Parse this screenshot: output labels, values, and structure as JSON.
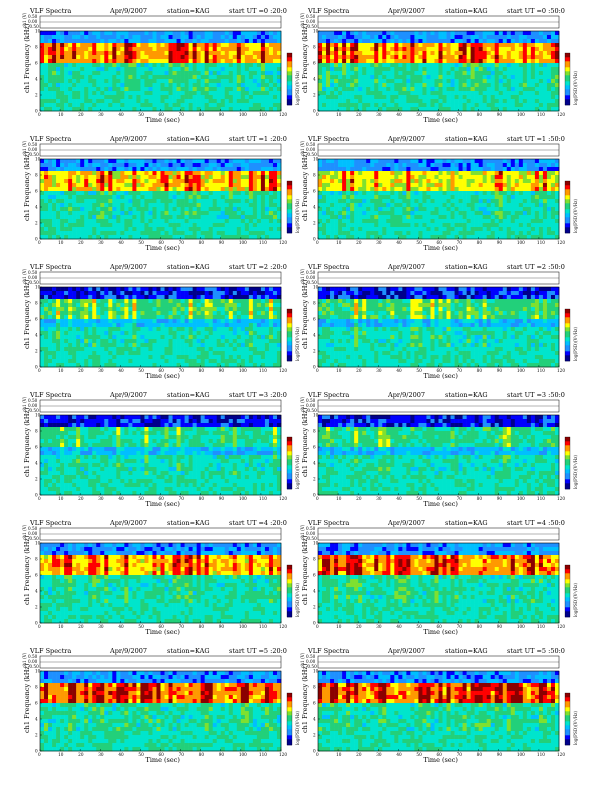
{
  "colors": {
    "colormap": [
      "#00008b",
      "#0000ff",
      "#1e90ff",
      "#00bfff",
      "#00e5cc",
      "#22d07a",
      "#7fe030",
      "#ffff00",
      "#ff9900",
      "#ff0000",
      "#8b0000"
    ]
  },
  "chart_data": [
    {
      "type": "heatmap",
      "title": "VLF Spectra",
      "date": "Apr/9/2007",
      "station": "station=KAG",
      "start": "start  UT =0 :20:0",
      "ylabel_top": "ch1 (V)",
      "yticks_top": [
        "0.50",
        "0.00",
        "-0.50"
      ],
      "ylabel": "ch1 Frequency (kHz)",
      "yticks": [
        "0",
        "2",
        "4",
        "6",
        "8",
        "10"
      ],
      "xlabel": "Time (sec)",
      "xticks": [
        "0",
        "10",
        "20",
        "30",
        "40",
        "50",
        "60",
        "70",
        "80",
        "90",
        "100",
        "110",
        "120"
      ],
      "xlim": [
        0,
        120
      ],
      "ylim": [
        0,
        10
      ],
      "colorbar_label": "log(PSD)(V²/Hz)",
      "activity": 0.7
    },
    {
      "type": "heatmap",
      "title": "VLF Spectra",
      "date": "Apr/9/2007",
      "station": "station=KAG",
      "start": "start  UT =0 :50:0",
      "ylabel_top": "ch1 (V)",
      "yticks_top": [
        "0.50",
        "0.00",
        "-0.50"
      ],
      "ylabel": "ch1 Frequency (kHz)",
      "yticks": [
        "0",
        "2",
        "4",
        "6",
        "8",
        "10"
      ],
      "xlabel": "Time (sec)",
      "xticks": [
        "0",
        "10",
        "20",
        "30",
        "40",
        "50",
        "60",
        "70",
        "80",
        "90",
        "100",
        "110",
        "120"
      ],
      "xlim": [
        0,
        120
      ],
      "ylim": [
        0,
        10
      ],
      "colorbar_label": "log(PSD)(V²/Hz)",
      "activity": 0.65
    },
    {
      "type": "heatmap",
      "title": "VLF Spectra",
      "date": "Apr/9/2007",
      "station": "station=KAG",
      "start": "start  UT =1 :20:0",
      "ylabel_top": "ch1 (V)",
      "yticks_top": [
        "0.50",
        "0.00",
        "-0.50"
      ],
      "ylabel": "ch1 Frequency (kHz)",
      "yticks": [
        "0",
        "2",
        "4",
        "6",
        "8",
        "10"
      ],
      "xlabel": "Time (sec)",
      "xticks": [
        "0",
        "10",
        "20",
        "30",
        "40",
        "50",
        "60",
        "70",
        "80",
        "90",
        "100",
        "110",
        "120"
      ],
      "xlim": [
        0,
        120
      ],
      "ylim": [
        0,
        10
      ],
      "colorbar_label": "log(PSD)(V²/Hz)",
      "activity": 0.55
    },
    {
      "type": "heatmap",
      "title": "VLF Spectra",
      "date": "Apr/9/2007",
      "station": "station=KAG",
      "start": "start  UT =1 :50:0",
      "ylabel_top": "ch1 (V)",
      "yticks_top": [
        "0.50",
        "0.00",
        "-0.50"
      ],
      "ylabel": "ch1 Frequency (kHz)",
      "yticks": [
        "0",
        "2",
        "4",
        "6",
        "8",
        "10"
      ],
      "xlabel": "Time (sec)",
      "xticks": [
        "0",
        "10",
        "20",
        "30",
        "40",
        "50",
        "60",
        "70",
        "80",
        "90",
        "100",
        "110",
        "120"
      ],
      "xlim": [
        0,
        120
      ],
      "ylim": [
        0,
        10
      ],
      "colorbar_label": "log(PSD)(V²/Hz)",
      "activity": 0.5
    },
    {
      "type": "heatmap",
      "title": "VLF Spectra",
      "date": "Apr/9/2007",
      "station": "station=KAG",
      "start": "start  UT =2 :20:0",
      "ylabel_top": "ch1 (V)",
      "yticks_top": [
        "0.50",
        "0.00",
        "-0.50"
      ],
      "ylabel": "ch1 Frequency (kHz)",
      "yticks": [
        "0",
        "2",
        "4",
        "6",
        "8",
        "10"
      ],
      "xlabel": "Time (sec)",
      "xticks": [
        "0",
        "10",
        "20",
        "30",
        "40",
        "50",
        "60",
        "70",
        "80",
        "90",
        "100",
        "110",
        "120"
      ],
      "xlim": [
        0,
        120
      ],
      "ylim": [
        0,
        10
      ],
      "colorbar_label": "log(PSD)(V²/Hz)",
      "activity": 0.35
    },
    {
      "type": "heatmap",
      "title": "VLF Spectra",
      "date": "Apr/9/2007",
      "station": "station=KAG",
      "start": "start  UT =2 :50:0",
      "ylabel_top": "ch1 (V)",
      "yticks_top": [
        "0.50",
        "0.00",
        "-0.50"
      ],
      "ylabel": "ch1 Frequency (kHz)",
      "yticks": [
        "0",
        "2",
        "4",
        "6",
        "8",
        "10"
      ],
      "xlabel": "Time (sec)",
      "xticks": [
        "0",
        "10",
        "20",
        "30",
        "40",
        "50",
        "60",
        "70",
        "80",
        "90",
        "100",
        "110",
        "120"
      ],
      "xlim": [
        0,
        120
      ],
      "ylim": [
        0,
        10
      ],
      "colorbar_label": "log(PSD)(V²/Hz)",
      "activity": 0.35
    },
    {
      "type": "heatmap",
      "title": "VLF Spectra",
      "date": "Apr/9/2007",
      "station": "station=KAG",
      "start": "start  UT =3 :20:0",
      "ylabel_top": "ch1 (V)",
      "yticks_top": [
        "0.50",
        "0.00",
        "-0.50"
      ],
      "ylabel": "ch1 Frequency (kHz)",
      "yticks": [
        "0",
        "2",
        "4",
        "6",
        "8",
        "10"
      ],
      "xlabel": "Time (sec)",
      "xticks": [
        "0",
        "10",
        "20",
        "30",
        "40",
        "50",
        "60",
        "70",
        "80",
        "90",
        "100",
        "110",
        "120"
      ],
      "xlim": [
        0,
        120
      ],
      "ylim": [
        0,
        10
      ],
      "colorbar_label": "log(PSD)(V²/Hz)",
      "activity": 0.25
    },
    {
      "type": "heatmap",
      "title": "VLF Spectra",
      "date": "Apr/9/2007",
      "station": "station=KAG",
      "start": "start  UT =3 :50:0",
      "ylabel_top": "ch1 (V)",
      "yticks_top": [
        "0.50",
        "0.00",
        "-0.50"
      ],
      "ylabel": "ch1 Frequency (kHz)",
      "yticks": [
        "0",
        "2",
        "4",
        "6",
        "8",
        "10"
      ],
      "xlabel": "Time (sec)",
      "xticks": [
        "0",
        "10",
        "20",
        "30",
        "40",
        "50",
        "60",
        "70",
        "80",
        "90",
        "100",
        "110",
        "120"
      ],
      "xlim": [
        0,
        120
      ],
      "ylim": [
        0,
        10
      ],
      "colorbar_label": "log(PSD)(V²/Hz)",
      "activity": 0.3
    },
    {
      "type": "heatmap",
      "title": "VLF Spectra",
      "date": "Apr/9/2007",
      "station": "station=KAG",
      "start": "start  UT =4 :20:0",
      "ylabel_top": "ch1 (V)",
      "yticks_top": [
        "0.50",
        "0.00",
        "-0.50"
      ],
      "ylabel": "ch1 Frequency (kHz)",
      "yticks": [
        "0",
        "2",
        "4",
        "6",
        "8",
        "10"
      ],
      "xlabel": "Time (sec)",
      "xticks": [
        "0",
        "10",
        "20",
        "30",
        "40",
        "50",
        "60",
        "70",
        "80",
        "90",
        "100",
        "110",
        "120"
      ],
      "xlim": [
        0,
        120
      ],
      "ylim": [
        0,
        10
      ],
      "colorbar_label": "log(PSD)(V²/Hz)",
      "activity": 0.6
    },
    {
      "type": "heatmap",
      "title": "VLF Spectra",
      "date": "Apr/9/2007",
      "station": "station=KAG",
      "start": "start  UT =4 :50:0",
      "ylabel_top": "ch1 (V)",
      "yticks_top": [
        "0.50",
        "0.00",
        "-0.50"
      ],
      "ylabel": "ch1 Frequency (kHz)",
      "yticks": [
        "0",
        "2",
        "4",
        "6",
        "8",
        "10"
      ],
      "xlabel": "Time (sec)",
      "xticks": [
        "0",
        "10",
        "20",
        "30",
        "40",
        "50",
        "60",
        "70",
        "80",
        "90",
        "100",
        "110",
        "120"
      ],
      "xlim": [
        0,
        120
      ],
      "ylim": [
        0,
        10
      ],
      "colorbar_label": "log(PSD)(V²/Hz)",
      "activity": 0.75
    },
    {
      "type": "heatmap",
      "title": "VLF Spectra",
      "date": "Apr/9/2007",
      "station": "station=KAG",
      "start": "start  UT =5 :20:0",
      "ylabel_top": "ch1 (V)",
      "yticks_top": [
        "0.50",
        "0.00",
        "-0.50"
      ],
      "ylabel": "ch1 Frequency (kHz)",
      "yticks": [
        "0",
        "2",
        "4",
        "6",
        "8",
        "10"
      ],
      "xlabel": "Time (sec)",
      "xticks": [
        "0",
        "10",
        "20",
        "30",
        "40",
        "50",
        "60",
        "70",
        "80",
        "90",
        "100",
        "110",
        "120"
      ],
      "xlim": [
        0,
        120
      ],
      "ylim": [
        0,
        10
      ],
      "colorbar_label": "log(PSD)(V²/Hz)",
      "activity": 0.8
    },
    {
      "type": "heatmap",
      "title": "VLF Spectra",
      "date": "Apr/9/2007",
      "station": "station=KAG",
      "start": "start  UT =5 :50:0",
      "ylabel_top": "ch1 (V)",
      "yticks_top": [
        "0.50",
        "0.00",
        "-0.50"
      ],
      "ylabel": "ch1 Frequency (kHz)",
      "yticks": [
        "0",
        "2",
        "4",
        "6",
        "8",
        "10"
      ],
      "xlabel": "Time (sec)",
      "xticks": [
        "0",
        "10",
        "20",
        "30",
        "40",
        "50",
        "60",
        "70",
        "80",
        "90",
        "100",
        "110",
        "120"
      ],
      "xlim": [
        0,
        120
      ],
      "ylim": [
        0,
        10
      ],
      "colorbar_label": "log(PSD)(V²/Hz)",
      "activity": 0.8
    }
  ]
}
